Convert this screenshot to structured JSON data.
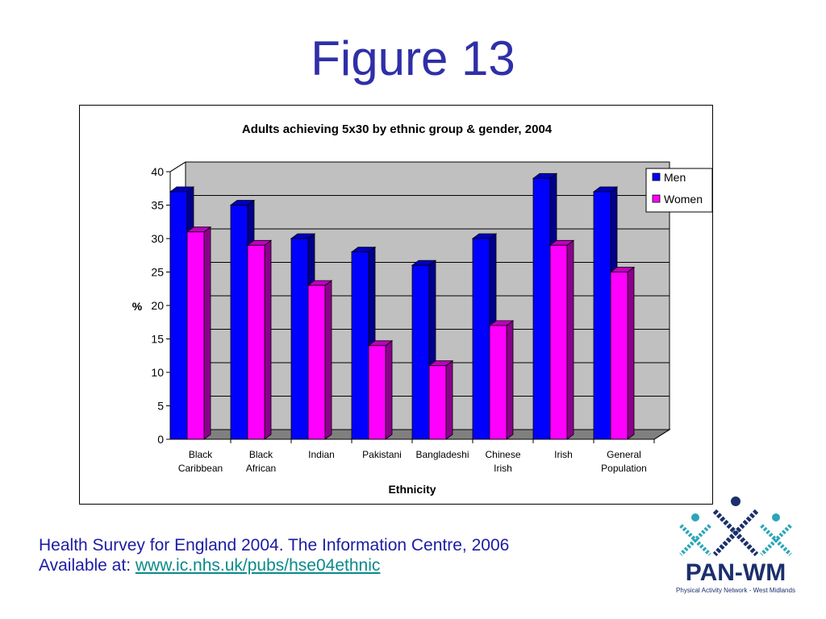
{
  "slide": {
    "title": "Figure 13",
    "source_line1": "Health Survey for England 2004. The Information Centre, 2006",
    "source_prefix": "Available at: ",
    "source_link": "www.ic.nhs.uk/pubs/hse04ethnic"
  },
  "logo": {
    "name": "PAN-WM",
    "subtitle": "Physical Activity Network - West Midlands",
    "icon": "people-cross-icon",
    "colors": {
      "teal": "#2aa6b8",
      "navy": "#1b2f6b"
    }
  },
  "chart_data": {
    "type": "bar",
    "title": "Adults achieving 5x30 by ethnic group & gender, 2004",
    "xlabel": "Ethnicity",
    "ylabel": "%",
    "ylim": [
      0,
      40
    ],
    "yticks": [
      0,
      5,
      10,
      15,
      20,
      25,
      30,
      35,
      40
    ],
    "grid": true,
    "legend_position": "right",
    "categories": [
      [
        "Black",
        "Caribbean"
      ],
      [
        "Black",
        "African"
      ],
      [
        "Indian"
      ],
      [
        "Pakistani"
      ],
      [
        "Bangladeshi"
      ],
      [
        "Chinese",
        "Irish"
      ],
      [
        "Irish"
      ],
      [
        "General",
        "Population"
      ]
    ],
    "series": [
      {
        "name": "Men",
        "color": "#0000ff",
        "values": [
          37,
          35,
          30,
          28,
          26,
          30,
          39,
          37
        ]
      },
      {
        "name": "Women",
        "color": "#ff00ff",
        "values": [
          31,
          29,
          23,
          14,
          11,
          17,
          29,
          25
        ]
      }
    ]
  }
}
